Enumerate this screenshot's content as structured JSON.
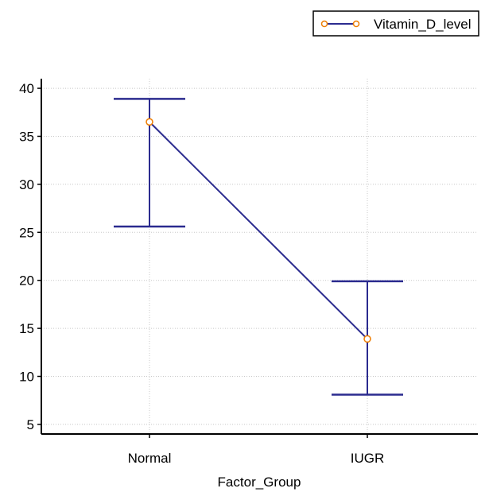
{
  "chart_data": {
    "type": "line",
    "xlabel": "Factor_Group",
    "ylabel": "",
    "categories": [
      "Normal",
      "IUGR"
    ],
    "ylim": [
      4,
      41
    ],
    "yticks": [
      5,
      10,
      15,
      20,
      25,
      30,
      35,
      40
    ],
    "grid": true,
    "legend_position": "top-right",
    "series": [
      {
        "name": "Vitamin_D_level",
        "values": [
          36.5,
          13.9
        ],
        "error_low": [
          25.6,
          8.1
        ],
        "error_high": [
          38.9,
          19.9
        ],
        "line_color": "#2b2b8f",
        "marker_color": "#ee7d00"
      }
    ]
  }
}
